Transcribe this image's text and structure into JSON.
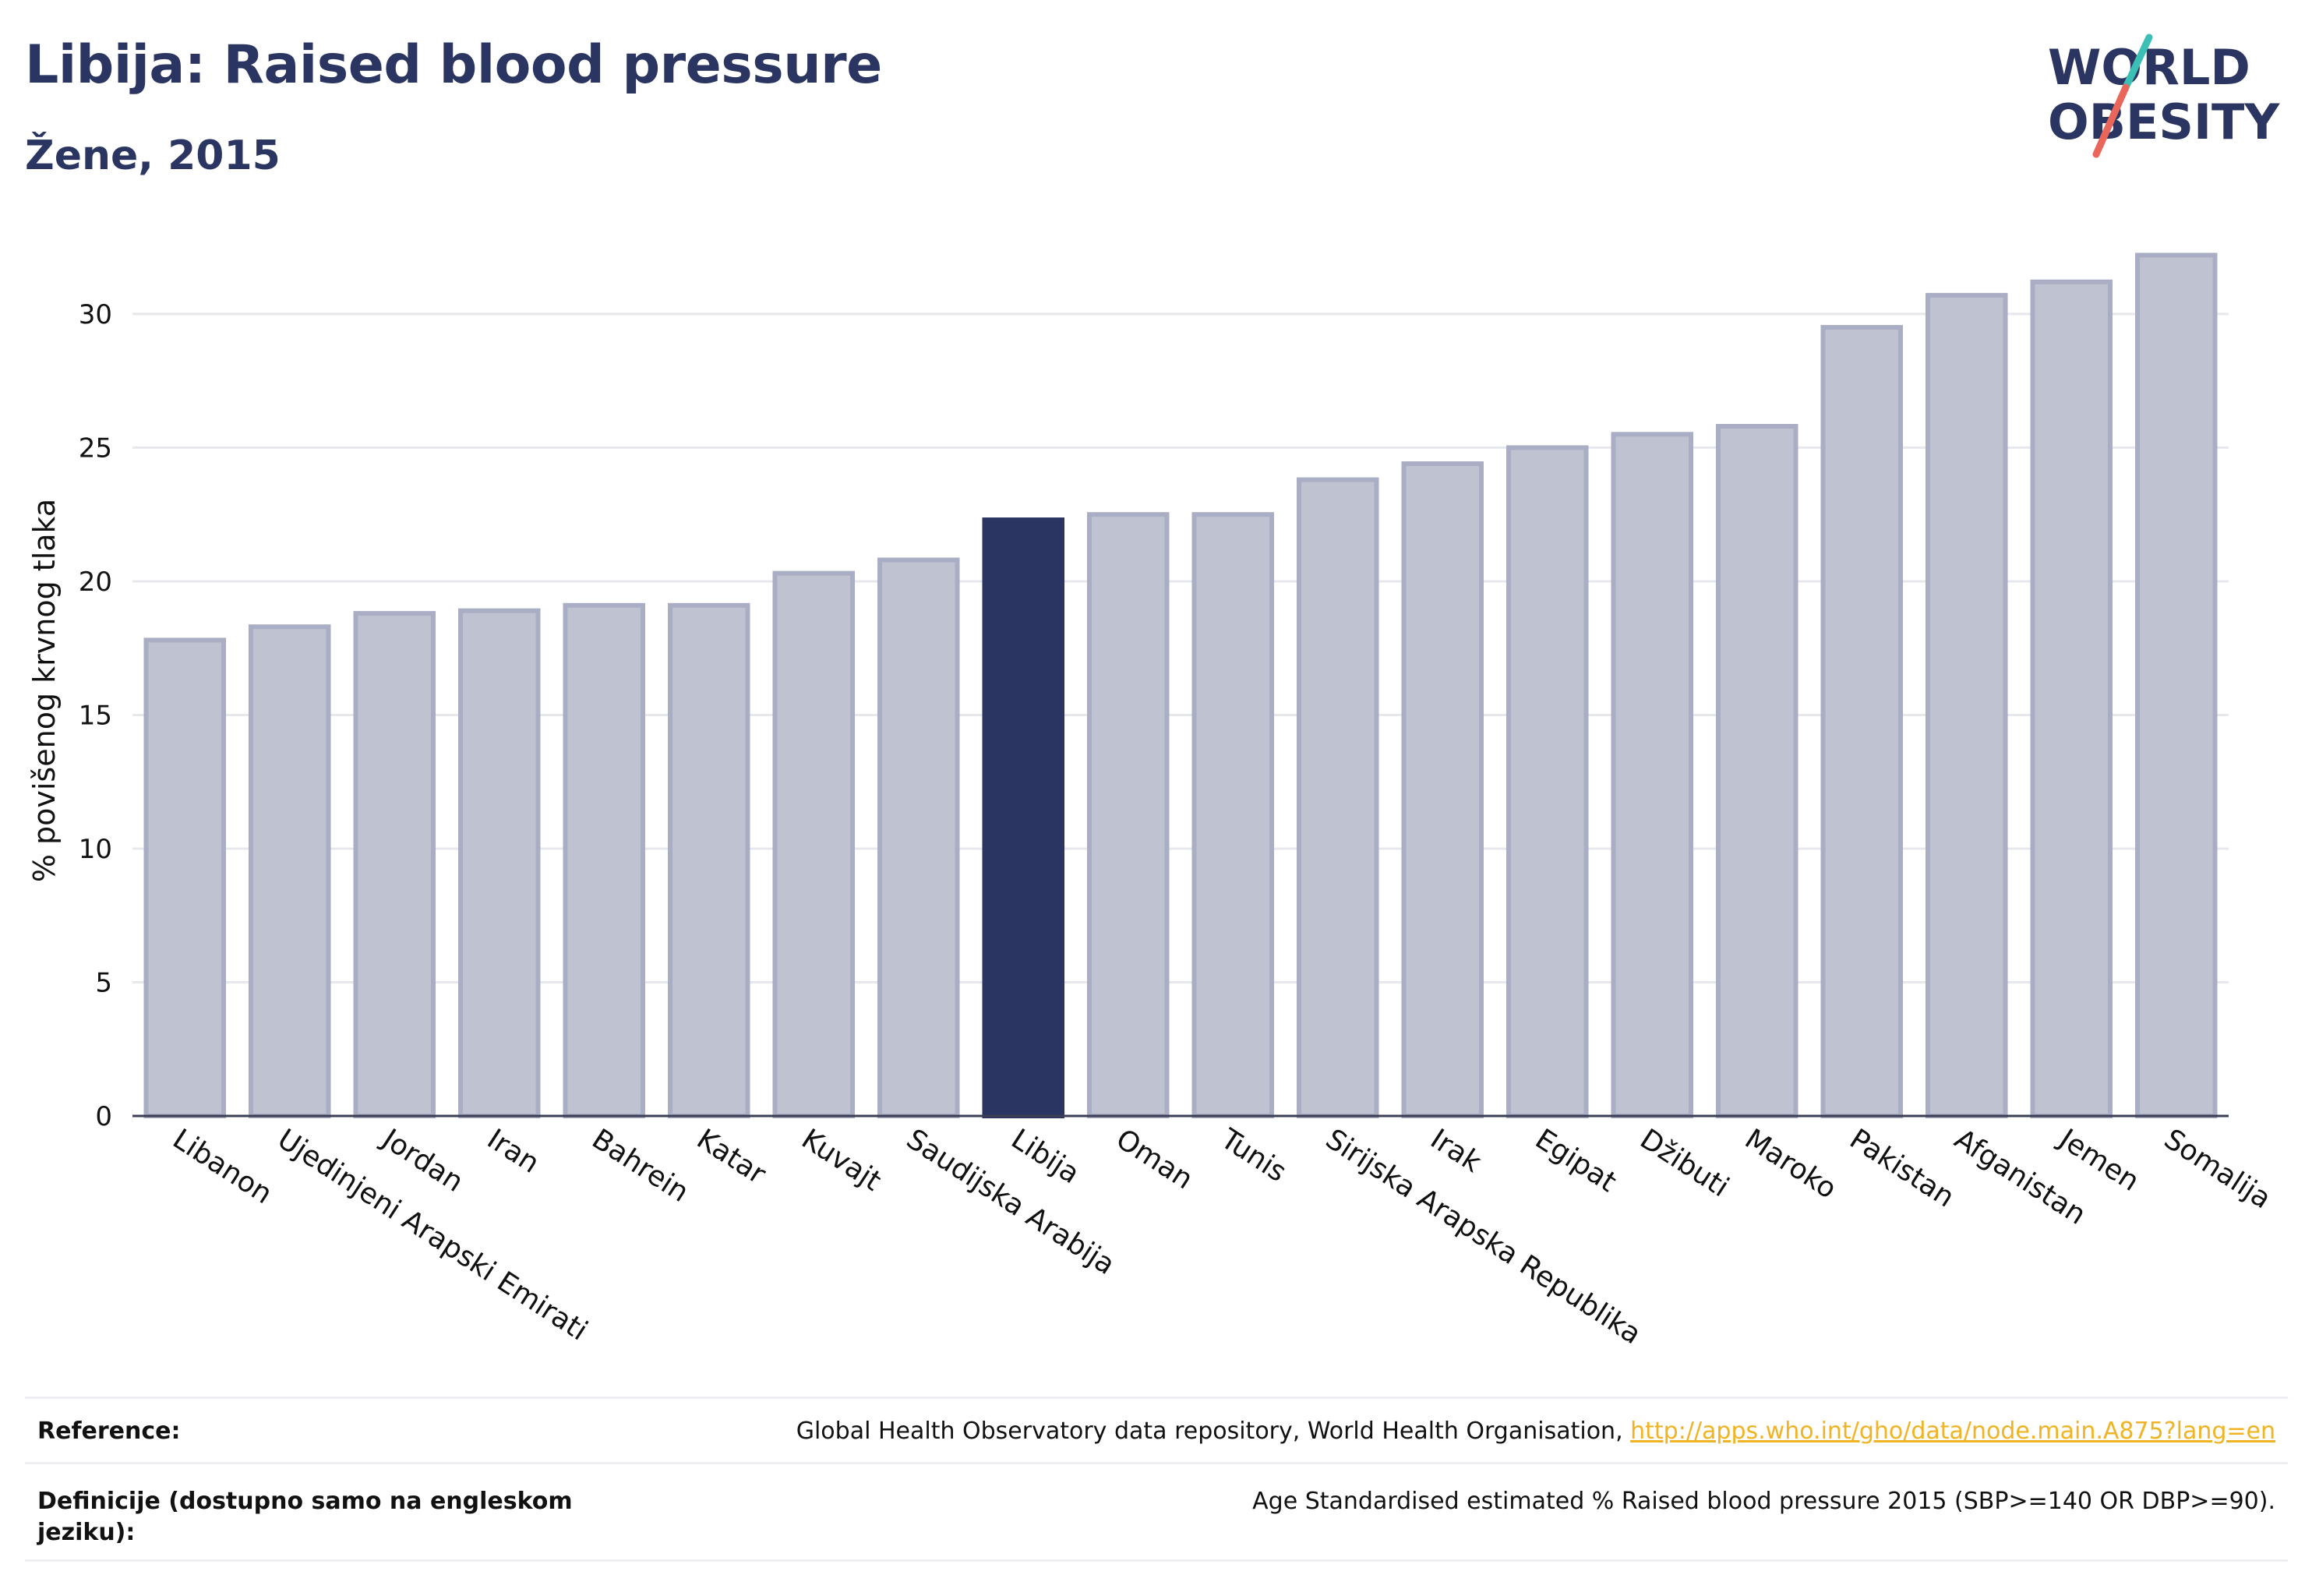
{
  "header": {
    "title": "Libija: Raised blood pressure",
    "subtitle": "Žene, 2015"
  },
  "logo": {
    "line1": "WORLD",
    "line2": "OBESITY",
    "text_color": "#2b3561",
    "slash_colors": [
      "#3cbfb4",
      "#e8675a"
    ]
  },
  "chart_data": {
    "type": "bar",
    "ylabel": "% povišenog krvnog tlaka",
    "xlabel": "",
    "ylim": [
      0,
      33
    ],
    "yticks": [
      0,
      5,
      10,
      15,
      20,
      25,
      30
    ],
    "grid": true,
    "highlight": "Libija",
    "colors": {
      "bar": "#bfc3d1",
      "bar_edge": "#a9aec4",
      "highlight": "#2b3561"
    },
    "categories": [
      "Libanon",
      "Ujedinjeni Arapski Emirati",
      "Jordan",
      "Iran",
      "Bahrein",
      "Katar",
      "Kuvajt",
      "Saudijska Arabija",
      "Libija",
      "Oman",
      "Tunis",
      "Sirijska Arapska Republika",
      "Irak",
      "Egipat",
      "Džibuti",
      "Maroko",
      "Pakistan",
      "Afganistan",
      "Jemen",
      "Somalija"
    ],
    "values": [
      17.8,
      18.3,
      18.8,
      18.9,
      19.1,
      19.1,
      20.3,
      20.8,
      22.3,
      22.5,
      22.5,
      23.8,
      24.4,
      25.0,
      25.5,
      25.8,
      29.5,
      30.7,
      31.2,
      32.2
    ]
  },
  "footer": {
    "reference_label": "Reference:",
    "reference_text": "Global Health Observatory data repository, World Health Organisation, ",
    "reference_link": "http://apps.who.int/gho/data/node.main.A875?lang=en",
    "definition_label_line1": "Definicije (dostupno samo na engleskom",
    "definition_label_line2": "jeziku):",
    "definition_text": "Age Standardised estimated % Raised blood pressure 2015 (SBP>=140 OR DBP>=90)."
  }
}
